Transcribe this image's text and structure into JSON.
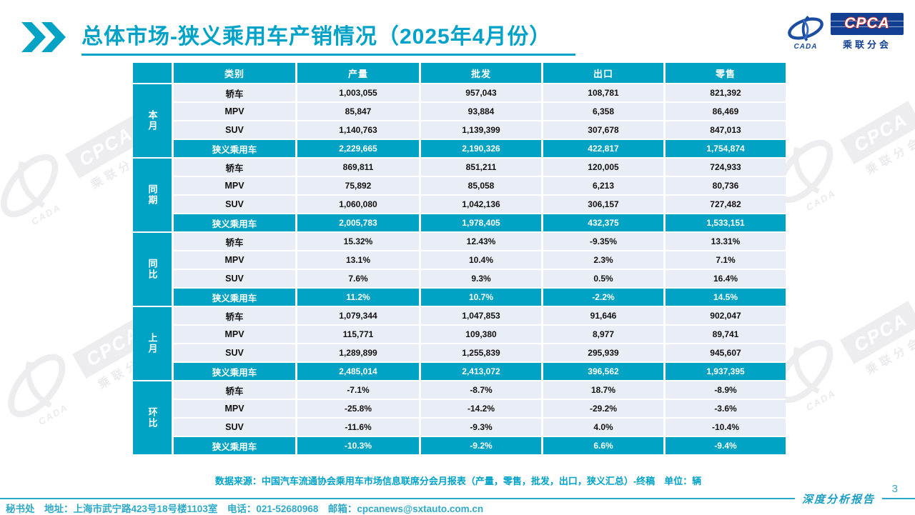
{
  "title": "总体市场-狭义乘用车产销情况（2025年4月份）",
  "logo": {
    "cpca": "CPCA",
    "sub": "乘联分会",
    "cada": "CADA"
  },
  "watermark": {
    "cpca": "CPCA",
    "sub": "乘联分会",
    "cada": "CADA"
  },
  "colors": {
    "accent": "#00a3c4",
    "title": "#00a2c8",
    "row_bg": "#e9edf5",
    "logo_blue": "#123f92"
  },
  "table": {
    "headers": [
      "类别",
      "产量",
      "批发",
      "出口",
      "零售"
    ],
    "groups": [
      {
        "label": "本月",
        "rows": [
          [
            "轿车",
            "1,003,055",
            "957,043",
            "108,781",
            "821,392"
          ],
          [
            "MPV",
            "85,847",
            "93,884",
            "6,358",
            "86,469"
          ],
          [
            "SUV",
            "1,140,763",
            "1,139,399",
            "307,678",
            "847,013"
          ]
        ],
        "summary": [
          "狭义乘用车",
          "2,229,665",
          "2,190,326",
          "422,817",
          "1,754,874"
        ]
      },
      {
        "label": "同期",
        "rows": [
          [
            "轿车",
            "869,811",
            "851,211",
            "120,005",
            "724,933"
          ],
          [
            "MPV",
            "75,892",
            "85,058",
            "6,213",
            "80,736"
          ],
          [
            "SUV",
            "1,060,080",
            "1,042,136",
            "306,157",
            "727,482"
          ]
        ],
        "summary": [
          "狭义乘用车",
          "2,005,783",
          "1,978,405",
          "432,375",
          "1,533,151"
        ]
      },
      {
        "label": "同比",
        "rows": [
          [
            "轿车",
            "15.32%",
            "12.43%",
            "-9.35%",
            "13.31%"
          ],
          [
            "MPV",
            "13.1%",
            "10.4%",
            "2.3%",
            "7.1%"
          ],
          [
            "SUV",
            "7.6%",
            "9.3%",
            "0.5%",
            "16.4%"
          ]
        ],
        "summary": [
          "狭义乘用车",
          "11.2%",
          "10.7%",
          "-2.2%",
          "14.5%"
        ]
      },
      {
        "label": "上月",
        "rows": [
          [
            "轿车",
            "1,079,344",
            "1,047,853",
            "91,646",
            "902,047"
          ],
          [
            "MPV",
            "115,771",
            "109,380",
            "8,977",
            "89,741"
          ],
          [
            "SUV",
            "1,289,899",
            "1,255,839",
            "295,939",
            "945,607"
          ]
        ],
        "summary": [
          "狭义乘用车",
          "2,485,014",
          "2,413,072",
          "396,562",
          "1,937,395"
        ]
      },
      {
        "label": "环比",
        "rows": [
          [
            "轿车",
            "-7.1%",
            "-8.7%",
            "18.7%",
            "-8.9%"
          ],
          [
            "MPV",
            "-25.8%",
            "-14.2%",
            "-29.2%",
            "-3.6%"
          ],
          [
            "SUV",
            "-11.6%",
            "-9.3%",
            "4.0%",
            "-10.4%"
          ]
        ],
        "summary": [
          "狭义乘用车",
          "-10.3%",
          "-9.2%",
          "6.6%",
          "-9.4%"
        ]
      }
    ]
  },
  "source_note": "数据来源：中国汽车流通协会乘用车市场信息联席分会月报表（产量，零售，批发，出口，狭义汇总）-终稿　单位：辆",
  "footer": {
    "contact": "秘书处　地址：上海市武宁路423号18号楼1103室　电话：021-52680968　邮箱：cpcanews@sxtauto.com.cn",
    "report_label": "深度分析报告",
    "page_number": "3"
  }
}
